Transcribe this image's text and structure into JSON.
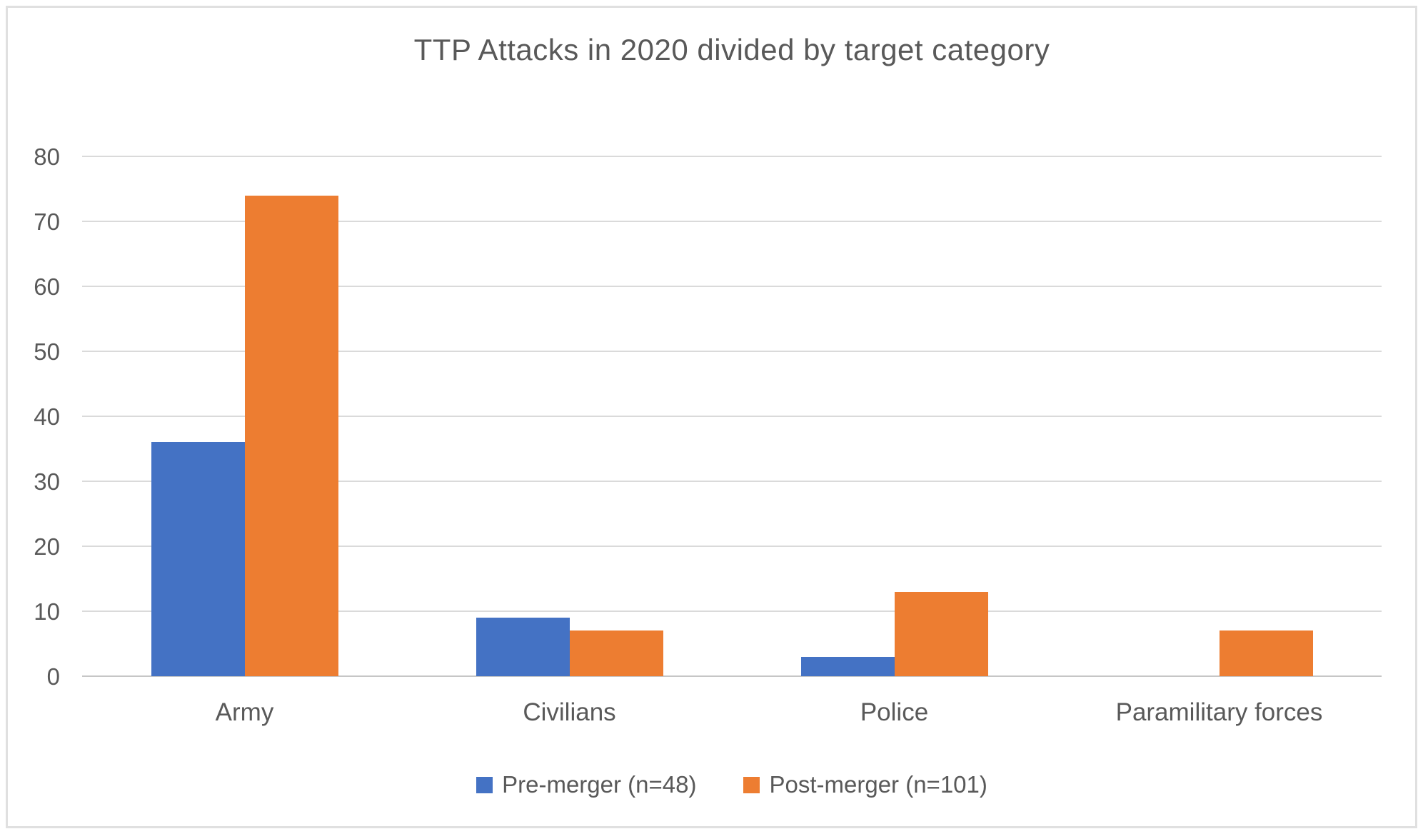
{
  "chart_data": {
    "type": "bar",
    "title": "TTP Attacks in 2020 divided by target category",
    "categories": [
      "Army",
      "Civilians",
      "Police",
      "Paramilitary forces"
    ],
    "series": [
      {
        "name": "Pre-merger (n=48)",
        "color": "#4472C4",
        "values": [
          36,
          9,
          3,
          0
        ]
      },
      {
        "name": "Post-merger (n=101)",
        "color": "#ED7D31",
        "values": [
          74,
          7,
          13,
          7
        ]
      }
    ],
    "xlabel": "",
    "ylabel": "",
    "ylim": [
      0,
      80
    ],
    "ytick_step": 10,
    "grid": true,
    "legend_position": "bottom",
    "text_color": "#595959",
    "gridline_color": "#dadada"
  }
}
